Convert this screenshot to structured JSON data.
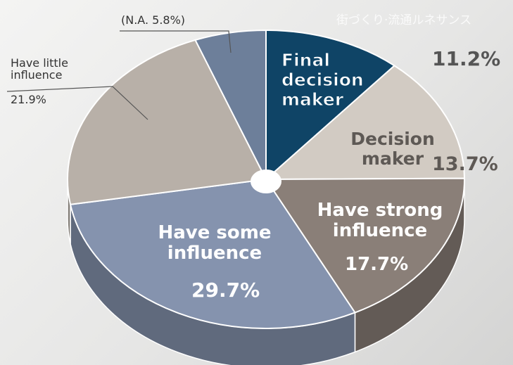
{
  "chart_data": {
    "type": "pie",
    "background_text": "街づくり·流通ルネサンス",
    "categories": [
      "Final decision maker",
      "Decision maker",
      "Have strong influence",
      "Have some influence",
      "Have little influence",
      null
    ],
    "values": [
      11.2,
      13.7,
      17.7,
      29.7,
      21.9,
      5.8
    ],
    "value_labels": [
      "11.2%",
      "13.7%",
      "17.7%",
      "29.7%",
      "21.9%",
      "(N.A. 5.8%)"
    ],
    "colors": [
      "#0f4466",
      "#d2cbc3",
      "#8a7f78",
      "#8593ae",
      "#b8b0a8",
      "#6d7f9a"
    ]
  }
}
